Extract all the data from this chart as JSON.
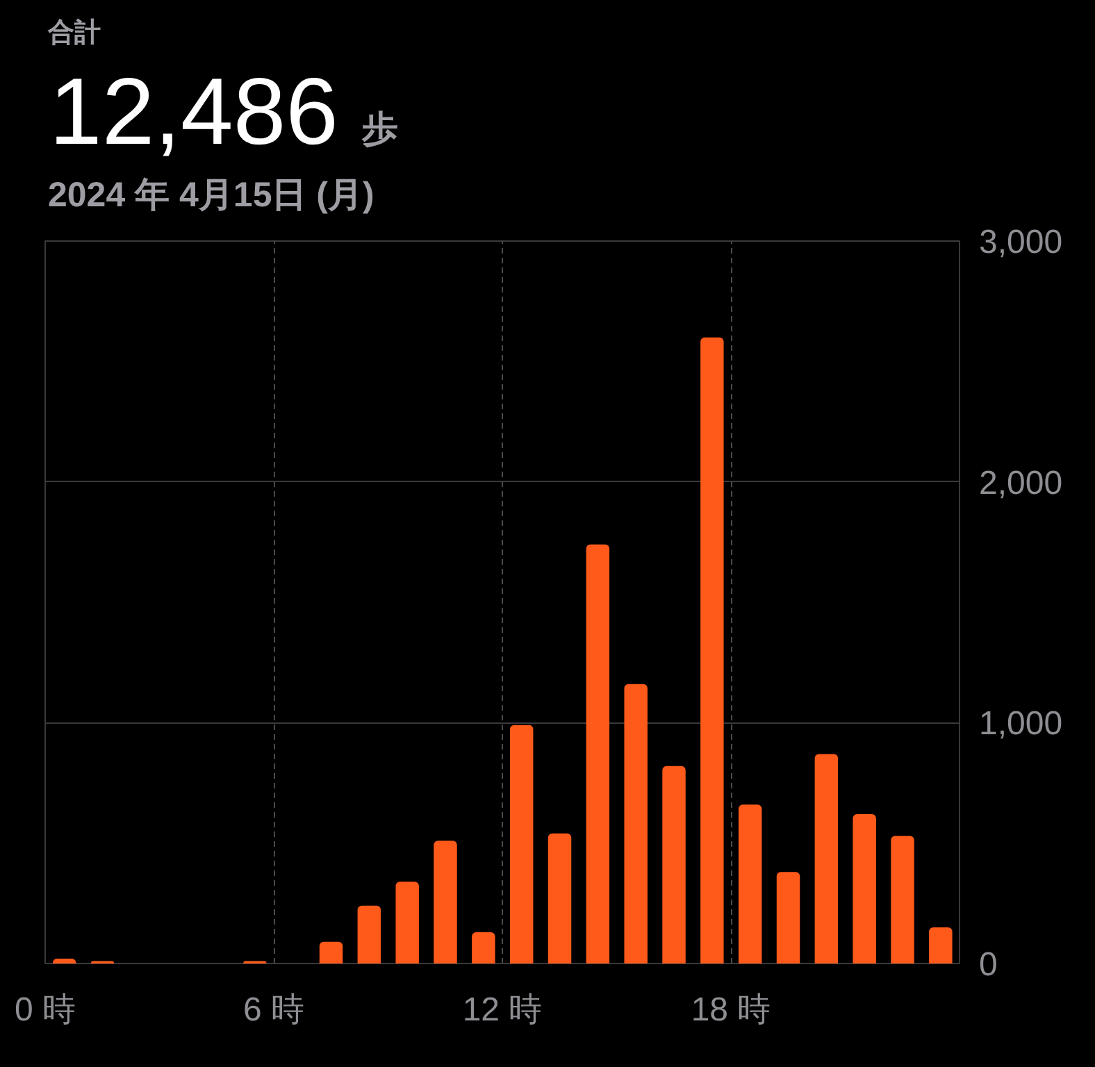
{
  "chart_data": {
    "type": "histogram",
    "title": "合計",
    "subtitle": "2024 年 4月15日 (月)",
    "annotations": [
      "12,486",
      "歩"
    ],
    "bins": [
      0,
      1,
      2,
      3,
      4,
      5,
      6,
      7,
      8,
      9,
      10,
      11,
      12,
      13,
      14,
      15,
      16,
      17,
      18,
      19,
      20,
      21,
      22,
      23,
      24
    ],
    "values": [
      20,
      10,
      0,
      0,
      0,
      10,
      0,
      90,
      240,
      340,
      510,
      130,
      990,
      540,
      1740,
      1160,
      820,
      2600,
      660,
      380,
      870,
      620,
      530,
      150
    ],
    "color": "#ff5a1a",
    "xlim": [
      0,
      24
    ],
    "xticks": [
      {
        "value": 0,
        "label": "0 時"
      },
      {
        "value": 6,
        "label": "6 時"
      },
      {
        "value": 12,
        "label": "12 時"
      },
      {
        "value": 18,
        "label": "18 時"
      }
    ],
    "ylim": [
      0,
      3000
    ],
    "yticks": [
      0,
      {
        "value": 1000,
        "label": "1,000"
      },
      {
        "value": 2000,
        "label": "2,000"
      },
      {
        "value": 3000,
        "label": "3,000"
      }
    ],
    "grid": true
  }
}
